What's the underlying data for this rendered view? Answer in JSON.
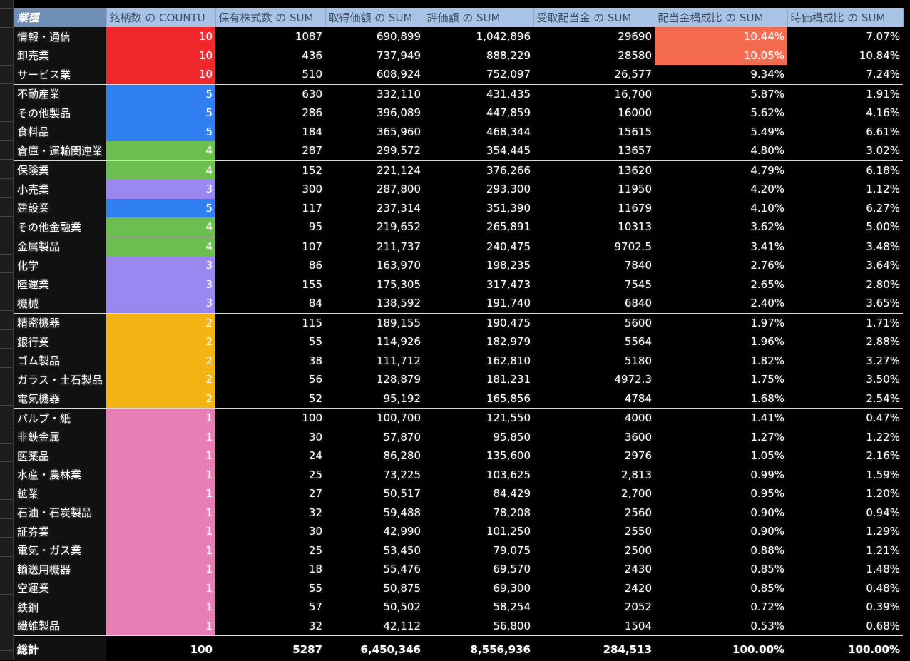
{
  "headers": [
    "業種",
    "銘柄数 の COUNTU",
    "保有株式数 の SUM",
    "取得価額 の SUM",
    "評価額 の SUM",
    "受取配当金 の SUM",
    "配当金構成比 の SUM",
    "時価構成比 の SUM"
  ],
  "colors": {
    "header_bg": "#a9c3e6",
    "header_first_bg": "#6f8fb8",
    "red": "#f0262b",
    "blue": "#2f7ff0",
    "green": "#6cbf4e",
    "purple": "#9b87f0",
    "orange": "#f3b312",
    "pink": "#e77fb6",
    "highlight": "#f46a4f"
  },
  "rows": [
    {
      "name": "情報・通信",
      "count": "10",
      "shares": "1087",
      "cost": "690,899",
      "value": "1,042,896",
      "dividend": "29690",
      "div_ratio": "10.44%",
      "mkt_ratio": "7.07%",
      "color": "red",
      "highlight": true,
      "sep": false
    },
    {
      "name": "卸売業",
      "count": "10",
      "shares": "436",
      "cost": "737,949",
      "value": "888,229",
      "dividend": "28580",
      "div_ratio": "10.05%",
      "mkt_ratio": "10.84%",
      "color": "red",
      "highlight": true,
      "sep": false
    },
    {
      "name": "サービス業",
      "count": "10",
      "shares": "510",
      "cost": "608,924",
      "value": "752,097",
      "dividend": "26,577",
      "div_ratio": "9.34%",
      "mkt_ratio": "7.24%",
      "color": "red",
      "highlight": false,
      "sep": false
    },
    {
      "name": "不動産業",
      "count": "5",
      "shares": "630",
      "cost": "332,110",
      "value": "431,435",
      "dividend": "16,700",
      "div_ratio": "5.87%",
      "mkt_ratio": "1.91%",
      "color": "blue",
      "highlight": false,
      "sep": true
    },
    {
      "name": "その他製品",
      "count": "5",
      "shares": "286",
      "cost": "396,089",
      "value": "447,859",
      "dividend": "16000",
      "div_ratio": "5.62%",
      "mkt_ratio": "4.16%",
      "color": "blue",
      "highlight": false,
      "sep": false
    },
    {
      "name": "食料品",
      "count": "5",
      "shares": "184",
      "cost": "365,960",
      "value": "468,344",
      "dividend": "15615",
      "div_ratio": "5.49%",
      "mkt_ratio": "6.61%",
      "color": "blue",
      "highlight": false,
      "sep": false
    },
    {
      "name": "倉庫・運輸関連業",
      "count": "4",
      "shares": "287",
      "cost": "299,572",
      "value": "354,445",
      "dividend": "13657",
      "div_ratio": "4.80%",
      "mkt_ratio": "3.02%",
      "color": "green",
      "highlight": false,
      "sep": false
    },
    {
      "name": "保険業",
      "count": "4",
      "shares": "152",
      "cost": "221,124",
      "value": "376,266",
      "dividend": "13620",
      "div_ratio": "4.79%",
      "mkt_ratio": "6.18%",
      "color": "green",
      "highlight": false,
      "sep": true
    },
    {
      "name": "小売業",
      "count": "3",
      "shares": "300",
      "cost": "287,800",
      "value": "293,300",
      "dividend": "11950",
      "div_ratio": "4.20%",
      "mkt_ratio": "1.12%",
      "color": "purple",
      "highlight": false,
      "sep": false
    },
    {
      "name": "建設業",
      "count": "5",
      "shares": "117",
      "cost": "237,314",
      "value": "351,390",
      "dividend": "11679",
      "div_ratio": "4.10%",
      "mkt_ratio": "6.27%",
      "color": "blue",
      "highlight": false,
      "sep": false
    },
    {
      "name": "その他金融業",
      "count": "4",
      "shares": "95",
      "cost": "219,652",
      "value": "265,891",
      "dividend": "10313",
      "div_ratio": "3.62%",
      "mkt_ratio": "5.00%",
      "color": "green",
      "highlight": false,
      "sep": false
    },
    {
      "name": "金属製品",
      "count": "4",
      "shares": "107",
      "cost": "211,737",
      "value": "240,475",
      "dividend": "9702.5",
      "div_ratio": "3.41%",
      "mkt_ratio": "3.48%",
      "color": "green",
      "highlight": false,
      "sep": true
    },
    {
      "name": "化学",
      "count": "3",
      "shares": "86",
      "cost": "163,970",
      "value": "198,235",
      "dividend": "7840",
      "div_ratio": "2.76%",
      "mkt_ratio": "3.64%",
      "color": "purple",
      "highlight": false,
      "sep": false
    },
    {
      "name": "陸運業",
      "count": "3",
      "shares": "155",
      "cost": "175,305",
      "value": "317,473",
      "dividend": "7545",
      "div_ratio": "2.65%",
      "mkt_ratio": "2.80%",
      "color": "purple",
      "highlight": false,
      "sep": false
    },
    {
      "name": "機械",
      "count": "3",
      "shares": "84",
      "cost": "138,592",
      "value": "191,740",
      "dividend": "6840",
      "div_ratio": "2.40%",
      "mkt_ratio": "3.65%",
      "color": "purple",
      "highlight": false,
      "sep": false
    },
    {
      "name": "精密機器",
      "count": "2",
      "shares": "115",
      "cost": "189,155",
      "value": "190,475",
      "dividend": "5600",
      "div_ratio": "1.97%",
      "mkt_ratio": "1.71%",
      "color": "orange",
      "highlight": false,
      "sep": true
    },
    {
      "name": "銀行業",
      "count": "2",
      "shares": "55",
      "cost": "114,926",
      "value": "182,979",
      "dividend": "5564",
      "div_ratio": "1.96%",
      "mkt_ratio": "2.88%",
      "color": "orange",
      "highlight": false,
      "sep": false
    },
    {
      "name": "ゴム製品",
      "count": "2",
      "shares": "38",
      "cost": "111,712",
      "value": "162,810",
      "dividend": "5180",
      "div_ratio": "1.82%",
      "mkt_ratio": "3.27%",
      "color": "orange",
      "highlight": false,
      "sep": false
    },
    {
      "name": "ガラス・土石製品",
      "count": "2",
      "shares": "56",
      "cost": "128,879",
      "value": "181,231",
      "dividend": "4972.3",
      "div_ratio": "1.75%",
      "mkt_ratio": "3.50%",
      "color": "orange",
      "highlight": false,
      "sep": false
    },
    {
      "name": "電気機器",
      "count": "2",
      "shares": "52",
      "cost": "95,192",
      "value": "165,856",
      "dividend": "4784",
      "div_ratio": "1.68%",
      "mkt_ratio": "2.54%",
      "color": "orange",
      "highlight": false,
      "sep": false
    },
    {
      "name": "パルプ・紙",
      "count": "1",
      "shares": "100",
      "cost": "100,700",
      "value": "121,550",
      "dividend": "4000",
      "div_ratio": "1.41%",
      "mkt_ratio": "0.47%",
      "color": "pink",
      "highlight": false,
      "sep": true
    },
    {
      "name": "非鉄金属",
      "count": "1",
      "shares": "30",
      "cost": "57,870",
      "value": "95,850",
      "dividend": "3600",
      "div_ratio": "1.27%",
      "mkt_ratio": "1.22%",
      "color": "pink",
      "highlight": false,
      "sep": false
    },
    {
      "name": "医薬品",
      "count": "1",
      "shares": "24",
      "cost": "86,280",
      "value": "135,600",
      "dividend": "2976",
      "div_ratio": "1.05%",
      "mkt_ratio": "2.16%",
      "color": "pink",
      "highlight": false,
      "sep": false
    },
    {
      "name": "水産・農林業",
      "count": "1",
      "shares": "25",
      "cost": "73,225",
      "value": "103,625",
      "dividend": "2,813",
      "div_ratio": "0.99%",
      "mkt_ratio": "1.59%",
      "color": "pink",
      "highlight": false,
      "sep": false
    },
    {
      "name": "鉱業",
      "count": "1",
      "shares": "27",
      "cost": "50,517",
      "value": "84,429",
      "dividend": "2,700",
      "div_ratio": "0.95%",
      "mkt_ratio": "1.20%",
      "color": "pink",
      "highlight": false,
      "sep": false
    },
    {
      "name": "石油・石炭製品",
      "count": "1",
      "shares": "32",
      "cost": "59,488",
      "value": "78,208",
      "dividend": "2560",
      "div_ratio": "0.90%",
      "mkt_ratio": "0.94%",
      "color": "pink",
      "highlight": false,
      "sep": false
    },
    {
      "name": "証券業",
      "count": "1",
      "shares": "30",
      "cost": "42,990",
      "value": "101,250",
      "dividend": "2550",
      "div_ratio": "0.90%",
      "mkt_ratio": "1.29%",
      "color": "pink",
      "highlight": false,
      "sep": false
    },
    {
      "name": "電気・ガス業",
      "count": "1",
      "shares": "25",
      "cost": "53,450",
      "value": "79,075",
      "dividend": "2500",
      "div_ratio": "0.88%",
      "mkt_ratio": "1.21%",
      "color": "pink",
      "highlight": false,
      "sep": false
    },
    {
      "name": "輸送用機器",
      "count": "1",
      "shares": "18",
      "cost": "55,476",
      "value": "69,570",
      "dividend": "2430",
      "div_ratio": "0.85%",
      "mkt_ratio": "1.48%",
      "color": "pink",
      "highlight": false,
      "sep": false
    },
    {
      "name": "空運業",
      "count": "1",
      "shares": "55",
      "cost": "50,875",
      "value": "69,300",
      "dividend": "2420",
      "div_ratio": "0.85%",
      "mkt_ratio": "0.48%",
      "color": "pink",
      "highlight": false,
      "sep": false
    },
    {
      "name": "鉄鋼",
      "count": "1",
      "shares": "57",
      "cost": "50,502",
      "value": "58,254",
      "dividend": "2052",
      "div_ratio": "0.72%",
      "mkt_ratio": "0.39%",
      "color": "pink",
      "highlight": false,
      "sep": false
    },
    {
      "name": "繊維製品",
      "count": "1",
      "shares": "32",
      "cost": "42,112",
      "value": "56,800",
      "dividend": "1504",
      "div_ratio": "0.53%",
      "mkt_ratio": "0.68%",
      "color": "pink",
      "highlight": false,
      "sep": false
    }
  ],
  "total": {
    "name": "総計",
    "count": "100",
    "shares": "5287",
    "cost": "6,450,346",
    "value": "8,556,936",
    "dividend": "284,513",
    "div_ratio": "100.00%",
    "mkt_ratio": "100.00%"
  }
}
